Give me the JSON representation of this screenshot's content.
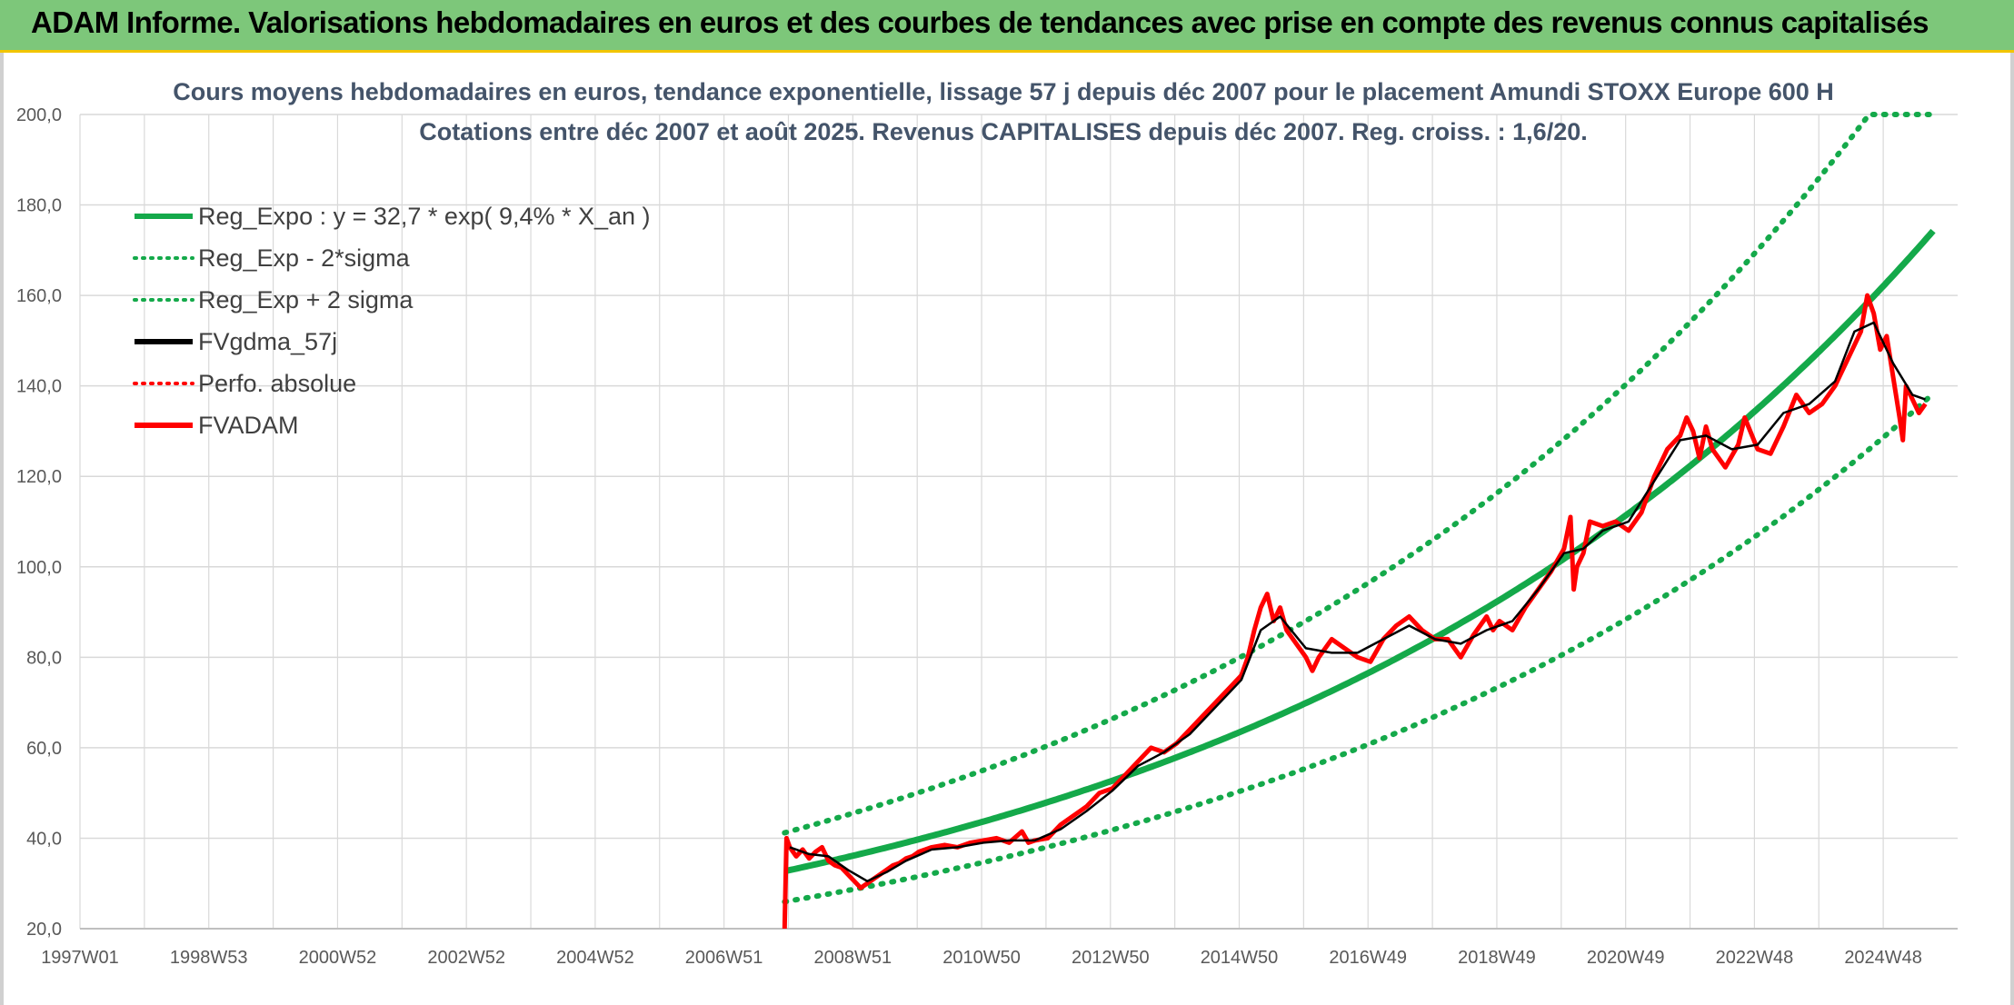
{
  "banner": {
    "title": "ADAM Informe. Valorisations hebdomadaires en euros et des courbes de tendances avec prise en compte des revenus connus capitalisés"
  },
  "colors": {
    "banner_bg": "#7dc77a",
    "trend_green": "#14a94a",
    "smooth_black": "#000000",
    "adam_red": "#ff0000",
    "grid": "#d9d9d9"
  },
  "chart_data": {
    "type": "line",
    "title": "Cours moyens hebdomadaires en euros, tendance exponentielle, lissage 57 j depuis déc 2007 pour le placement Amundi STOXX Europe 600 H",
    "subtitle": "Cotations entre déc 2007 et août 2025. Revenus CAPITALISES depuis déc 2007. Reg. croiss. : 1,6/20.",
    "xlabel": "",
    "ylabel": "",
    "x_ticks": [
      "1997W01",
      "1998W53",
      "2000W52",
      "2002W52",
      "2004W52",
      "2006W51",
      "2008W51",
      "2010W50",
      "2012W50",
      "2014W50",
      "2016W49",
      "2018W49",
      "2020W49",
      "2022W48",
      "2024W48"
    ],
    "x_range": [
      1997.0,
      2026.1
    ],
    "ylim": [
      20,
      200
    ],
    "y_ticks": [
      "20,0",
      "40,0",
      "60,0",
      "80,0",
      "100,0",
      "120,0",
      "140,0",
      "160,0",
      "180,0",
      "200,0"
    ],
    "grid": true,
    "legend_position": "top-left",
    "regression": {
      "a": 32.7,
      "rate": 0.094,
      "start": 2007.92,
      "sigma_factor": 1.26,
      "cap": 200
    },
    "legend": [
      {
        "label": "Reg_Expo : y = 32,7 * exp( 9,4% *  X_an )",
        "style": "solid",
        "color": "#14a94a"
      },
      {
        "label": "Reg_Exp - 2*sigma",
        "style": "dotted",
        "color": "#14a94a"
      },
      {
        "label": "Reg_Exp + 2 sigma",
        "style": "dotted",
        "color": "#14a94a"
      },
      {
        "label": "FVgdma_57j",
        "style": "solid",
        "color": "#000000"
      },
      {
        "label": "Perfo. absolue",
        "style": "dotted",
        "color": "#ff0000"
      },
      {
        "label": "FVADAM",
        "style": "solid",
        "color": "#ff0000"
      }
    ],
    "series": [
      {
        "name": "FVADAM",
        "x": [
          2007.92,
          2007.95,
          2008.0,
          2008.1,
          2008.2,
          2008.3,
          2008.4,
          2008.5,
          2008.6,
          2008.7,
          2008.8,
          2008.9,
          2009.0,
          2009.1,
          2009.2,
          2009.3,
          2009.4,
          2009.5,
          2009.6,
          2009.7,
          2009.8,
          2009.9,
          2010.0,
          2010.2,
          2010.4,
          2010.6,
          2010.8,
          2011.0,
          2011.2,
          2011.4,
          2011.6,
          2011.7,
          2011.8,
          2012.0,
          2012.2,
          2012.4,
          2012.6,
          2012.8,
          2013.0,
          2013.2,
          2013.4,
          2013.6,
          2013.8,
          2014.0,
          2014.2,
          2014.4,
          2014.6,
          2014.8,
          2015.0,
          2015.1,
          2015.2,
          2015.3,
          2015.4,
          2015.5,
          2015.6,
          2015.7,
          2015.8,
          2016.0,
          2016.1,
          2016.2,
          2016.4,
          2016.6,
          2016.8,
          2017.0,
          2017.2,
          2017.4,
          2017.6,
          2017.8,
          2018.0,
          2018.2,
          2018.4,
          2018.6,
          2018.8,
          2018.9,
          2019.0,
          2019.2,
          2019.4,
          2019.6,
          2019.8,
          2020.0,
          2020.1,
          2020.15,
          2020.2,
          2020.3,
          2020.4,
          2020.6,
          2020.8,
          2021.0,
          2021.2,
          2021.4,
          2021.6,
          2021.8,
          2021.9,
          2022.0,
          2022.1,
          2022.2,
          2022.3,
          2022.5,
          2022.7,
          2022.8,
          2023.0,
          2023.2,
          2023.4,
          2023.6,
          2023.8,
          2024.0,
          2024.2,
          2024.4,
          2024.6,
          2024.7,
          2024.8,
          2024.9,
          2025.0,
          2025.1,
          2025.2,
          2025.25,
          2025.3,
          2025.4,
          2025.5,
          2025.6
        ],
        "values": [
          20.0,
          40.0,
          38.0,
          36.0,
          37.5,
          35.5,
          37.0,
          38.0,
          35.0,
          34.0,
          33.5,
          32.0,
          30.5,
          29.0,
          30.0,
          31.0,
          32.0,
          33.0,
          34.0,
          34.5,
          35.5,
          36.0,
          37.0,
          38.0,
          38.5,
          38.0,
          39.0,
          39.5,
          40.0,
          39.0,
          41.5,
          39.0,
          39.5,
          40.0,
          43.0,
          45.0,
          47.0,
          50.0,
          51.0,
          54.0,
          57.0,
          60.0,
          59.0,
          61.0,
          64.0,
          67.0,
          70.0,
          73.0,
          76.0,
          80.0,
          86.0,
          91.0,
          94.0,
          88.0,
          91.0,
          86.0,
          84.0,
          80.0,
          77.0,
          80.0,
          84.0,
          82.0,
          80.0,
          79.0,
          84.0,
          87.0,
          89.0,
          86.0,
          84.0,
          84.0,
          80.0,
          85.0,
          89.0,
          86.0,
          88.0,
          86.0,
          91.0,
          95.0,
          99.0,
          104.0,
          111.0,
          95.0,
          100.0,
          103.0,
          110.0,
          109.0,
          110.0,
          108.0,
          112.0,
          120.0,
          126.0,
          129.0,
          133.0,
          130.0,
          124.0,
          131.0,
          126.0,
          122.0,
          127.0,
          133.0,
          126.0,
          125.0,
          131.0,
          138.0,
          134.0,
          136.0,
          140.0,
          146.0,
          152.0,
          160.0,
          156.0,
          148.0,
          151.0,
          142.0,
          133.0,
          128.0,
          140.0,
          137.0,
          134.0,
          136.0
        ]
      },
      {
        "name": "FVgdma_57j",
        "x": [
          2008.0,
          2008.3,
          2008.6,
          2008.9,
          2009.2,
          2009.5,
          2009.8,
          2010.2,
          2010.6,
          2011.0,
          2011.4,
          2011.8,
          2012.2,
          2012.6,
          2013.0,
          2013.4,
          2013.8,
          2014.2,
          2014.6,
          2015.0,
          2015.3,
          2015.6,
          2016.0,
          2016.4,
          2016.8,
          2017.2,
          2017.6,
          2018.0,
          2018.4,
          2018.8,
          2019.2,
          2019.6,
          2020.0,
          2020.3,
          2020.6,
          2021.0,
          2021.4,
          2021.8,
          2022.2,
          2022.6,
          2023.0,
          2023.4,
          2023.8,
          2024.2,
          2024.5,
          2024.8,
          2025.1,
          2025.4,
          2025.6
        ],
        "values": [
          38.0,
          36.5,
          36.0,
          33.0,
          30.5,
          32.5,
          35.0,
          37.5,
          38.0,
          39.0,
          39.5,
          39.5,
          42.0,
          46.0,
          50.5,
          56.0,
          59.0,
          63.0,
          69.0,
          75.0,
          86.0,
          89.0,
          82.0,
          81.0,
          81.0,
          84.0,
          87.0,
          84.0,
          83.0,
          86.0,
          88.0,
          95.0,
          103.0,
          104.0,
          108.0,
          110.0,
          119.0,
          128.0,
          129.0,
          126.0,
          127.0,
          134.0,
          136.0,
          141.0,
          152.0,
          154.0,
          145.0,
          138.0,
          137.0
        ]
      },
      {
        "name": "Reg_Expo"
      },
      {
        "name": "Reg_Exp - 2*sigma"
      },
      {
        "name": "Reg_Exp + 2 sigma"
      },
      {
        "name": "Perfo. absolue"
      }
    ]
  }
}
